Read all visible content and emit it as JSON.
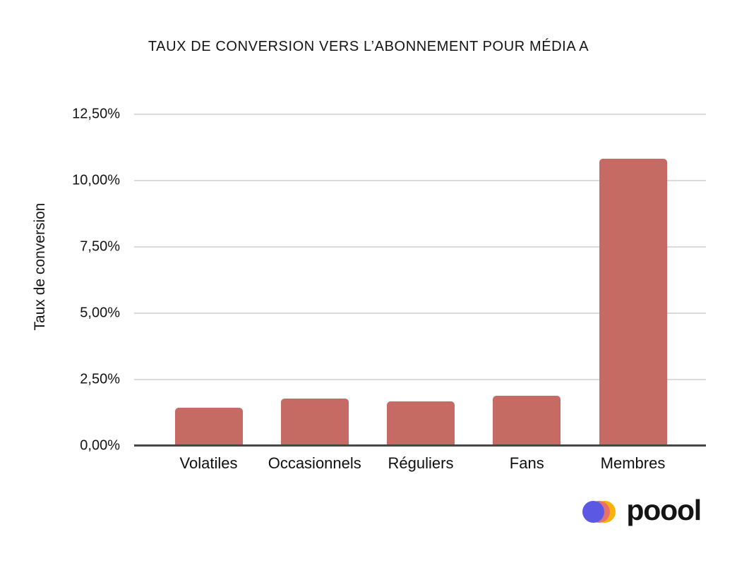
{
  "chart_data": {
    "type": "bar",
    "title": "TAUX DE CONVERSION VERS L’ABONNEMENT POUR MÉDIA A",
    "xlabel": "",
    "ylabel": "Taux de conversion",
    "categories": [
      "Volatiles",
      "Occasionnels",
      "Réguliers",
      "Fans",
      "Membres"
    ],
    "values": [
      1.4,
      1.75,
      1.65,
      1.85,
      10.8
    ],
    "value_unit": "%",
    "ylim": [
      0,
      12.5
    ],
    "ytick_step": 2.5,
    "ytick_labels": [
      "0,00%",
      "2,50%",
      "5,00%",
      "7,50%",
      "10,00%",
      "12,50%"
    ],
    "grid": true,
    "legend": "none",
    "bar_color": "#c56b64",
    "gridline_color": "#dadada",
    "axis_line_color": "#474747"
  },
  "footer": {
    "brand": "poool",
    "logo_colors": {
      "purple": "#5b58e4",
      "pink": "#e6716c",
      "yellow": "#fdb009"
    }
  }
}
